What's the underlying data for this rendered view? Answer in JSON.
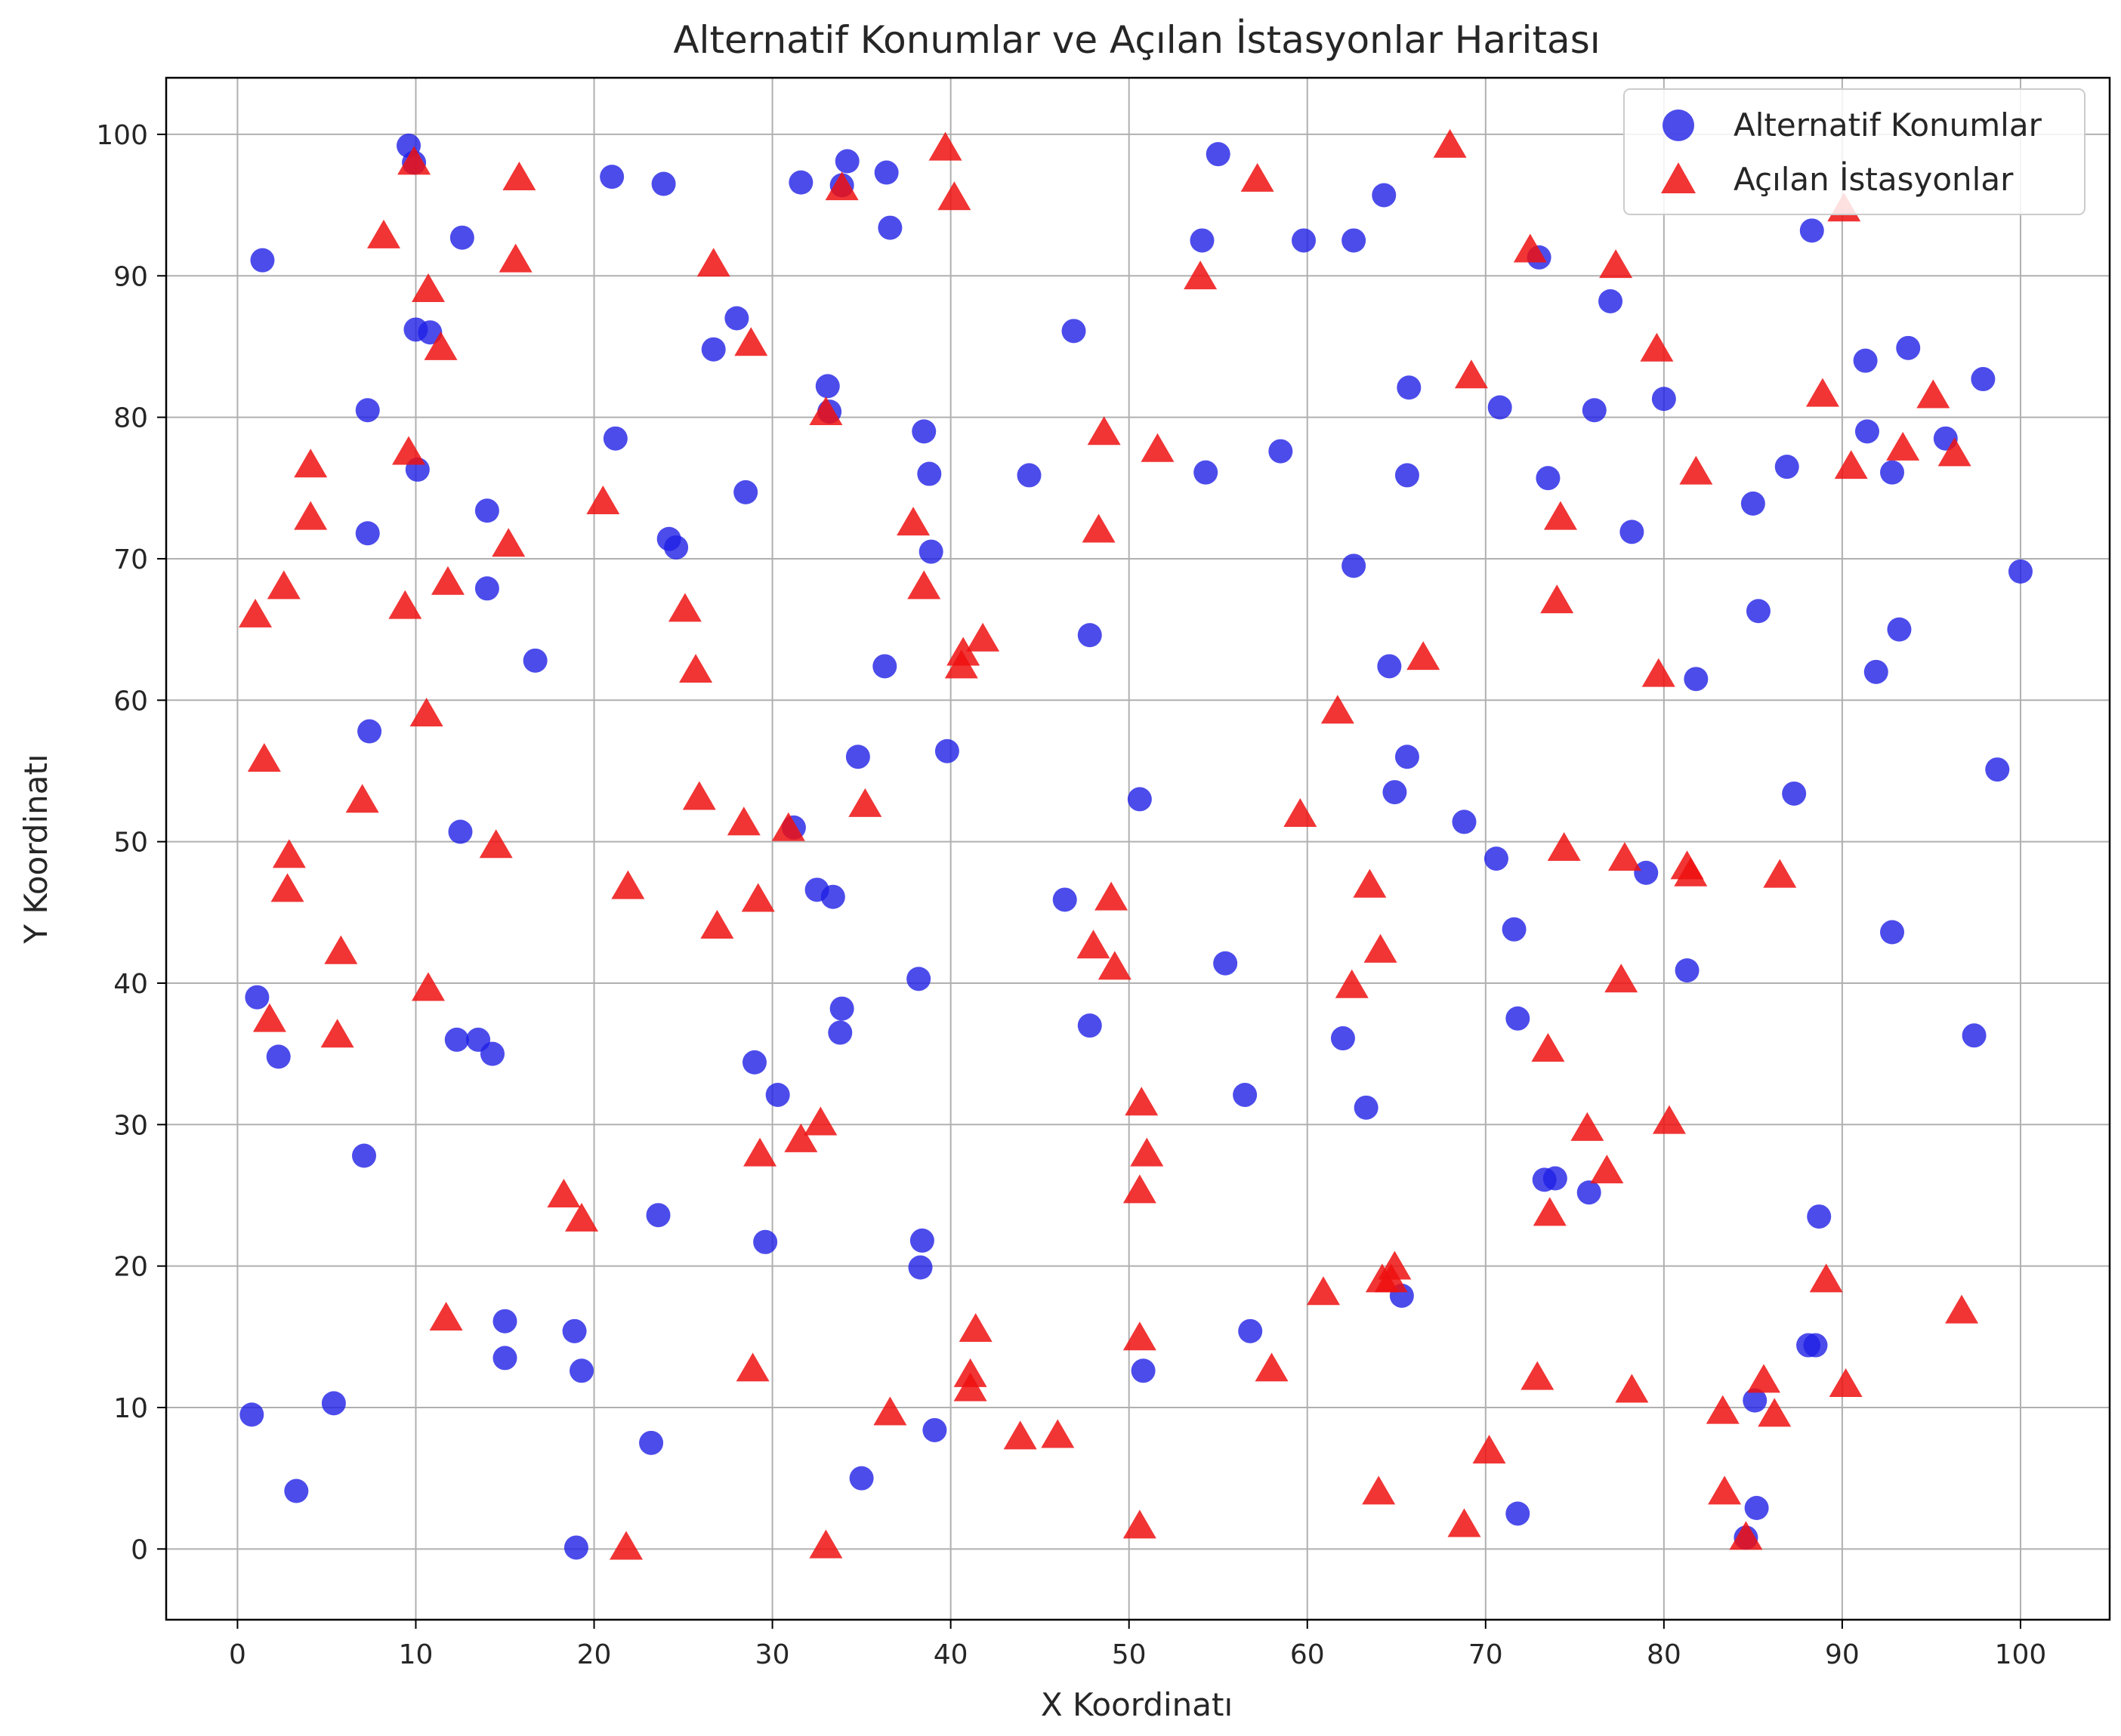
{
  "chart_data": {
    "type": "scatter",
    "title": "Alternatif Konumlar ve Açılan İstasyonlar Haritası",
    "xlabel": "X Koordinatı",
    "ylabel": "Y Koordinatı",
    "xlim": [
      -4,
      105
    ],
    "ylim": [
      -5,
      104
    ],
    "xticks": [
      0,
      10,
      20,
      30,
      40,
      50,
      60,
      70,
      80,
      90,
      100
    ],
    "yticks": [
      0,
      10,
      20,
      30,
      40,
      50,
      60,
      70,
      80,
      90,
      100
    ],
    "grid": true,
    "legend_position": "top-right",
    "series": [
      {
        "name": "Alternatif Konumlar",
        "marker": "circle",
        "color": "#1f1fe6",
        "points": [
          [
            1.4,
            91.1
          ],
          [
            9.6,
            99.2
          ],
          [
            9.9,
            98.0
          ],
          [
            10.0,
            86.2
          ],
          [
            10.8,
            86.0
          ],
          [
            10.1,
            76.3
          ],
          [
            7.3,
            80.5
          ],
          [
            7.3,
            71.8
          ],
          [
            12.6,
            92.7
          ],
          [
            14.0,
            73.4
          ],
          [
            14.0,
            67.9
          ],
          [
            16.7,
            62.8
          ],
          [
            7.4,
            57.8
          ],
          [
            12.5,
            50.7
          ],
          [
            1.1,
            39.0
          ],
          [
            2.3,
            34.8
          ],
          [
            7.1,
            27.8
          ],
          [
            12.3,
            36.0
          ],
          [
            13.5,
            36.0
          ],
          [
            14.3,
            35.0
          ],
          [
            15.0,
            13.5
          ],
          [
            15.0,
            16.1
          ],
          [
            5.4,
            10.3
          ],
          [
            3.3,
            4.1
          ],
          [
            0.8,
            9.5
          ],
          [
            18.9,
            15.4
          ],
          [
            19.3,
            12.6
          ],
          [
            23.2,
            7.5
          ],
          [
            19.0,
            0.1
          ],
          [
            23.6,
            23.6
          ],
          [
            21.0,
            97.0
          ],
          [
            23.9,
            96.5
          ],
          [
            21.2,
            78.5
          ],
          [
            24.2,
            71.4
          ],
          [
            24.6,
            70.8
          ],
          [
            26.7,
            84.8
          ],
          [
            28.0,
            87.0
          ],
          [
            28.5,
            74.7
          ],
          [
            29.0,
            34.4
          ],
          [
            29.6,
            21.7
          ],
          [
            30.3,
            32.1
          ],
          [
            31.2,
            51.0
          ],
          [
            31.6,
            96.6
          ],
          [
            32.5,
            46.6
          ],
          [
            33.4,
            46.1
          ],
          [
            33.1,
            82.2
          ],
          [
            33.2,
            80.4
          ],
          [
            34.2,
            98.1
          ],
          [
            33.9,
            96.4
          ],
          [
            33.9,
            38.2
          ],
          [
            33.8,
            36.5
          ],
          [
            34.8,
            56.0
          ],
          [
            35.0,
            5.0
          ],
          [
            36.4,
            97.3
          ],
          [
            36.6,
            93.4
          ],
          [
            36.3,
            62.4
          ],
          [
            38.5,
            79.0
          ],
          [
            38.9,
            70.5
          ],
          [
            38.8,
            76.0
          ],
          [
            38.2,
            40.3
          ],
          [
            38.4,
            21.8
          ],
          [
            38.3,
            19.9
          ],
          [
            39.1,
            8.4
          ],
          [
            39.8,
            56.4
          ],
          [
            46.9,
            86.1
          ],
          [
            44.4,
            75.9
          ],
          [
            47.8,
            64.6
          ],
          [
            47.8,
            37.0
          ],
          [
            46.4,
            45.9
          ],
          [
            50.6,
            53.0
          ],
          [
            50.8,
            12.6
          ],
          [
            54.1,
            92.5
          ],
          [
            55.0,
            98.6
          ],
          [
            54.3,
            76.1
          ],
          [
            55.4,
            41.4
          ],
          [
            56.5,
            32.1
          ],
          [
            56.8,
            15.4
          ],
          [
            58.5,
            77.6
          ],
          [
            59.8,
            92.5
          ],
          [
            62.6,
            92.5
          ],
          [
            62.6,
            69.5
          ],
          [
            62.0,
            36.1
          ],
          [
            63.3,
            31.2
          ],
          [
            64.3,
            95.7
          ],
          [
            64.6,
            62.4
          ],
          [
            64.9,
            53.5
          ],
          [
            65.7,
            82.1
          ],
          [
            65.6,
            75.9
          ],
          [
            65.6,
            56.0
          ],
          [
            65.3,
            17.9
          ],
          [
            68.8,
            51.4
          ],
          [
            70.6,
            48.8
          ],
          [
            70.8,
            80.7
          ],
          [
            71.6,
            43.8
          ],
          [
            71.8,
            37.5
          ],
          [
            71.8,
            2.5
          ],
          [
            73.0,
            91.3
          ],
          [
            73.3,
            26.1
          ],
          [
            73.5,
            75.7
          ],
          [
            73.9,
            26.2
          ],
          [
            75.8,
            25.2
          ],
          [
            76.1,
            80.5
          ],
          [
            77.0,
            88.2
          ],
          [
            78.2,
            71.9
          ],
          [
            79.0,
            47.8
          ],
          [
            80.0,
            81.3
          ],
          [
            81.3,
            40.9
          ],
          [
            81.8,
            61.5
          ],
          [
            85.3,
            66.3
          ],
          [
            85.0,
            73.9
          ],
          [
            86.9,
            76.5
          ],
          [
            87.3,
            53.4
          ],
          [
            88.3,
            93.2
          ],
          [
            88.1,
            14.4
          ],
          [
            88.5,
            14.4
          ],
          [
            88.7,
            23.5
          ],
          [
            91.3,
            84.0
          ],
          [
            91.4,
            79.0
          ],
          [
            91.9,
            62.0
          ],
          [
            92.8,
            76.1
          ],
          [
            93.2,
            65.0
          ],
          [
            93.7,
            84.9
          ],
          [
            92.8,
            43.6
          ],
          [
            95.8,
            78.5
          ],
          [
            97.9,
            82.7
          ],
          [
            98.7,
            55.1
          ],
          [
            100.0,
            69.1
          ],
          [
            97.4,
            36.3
          ],
          [
            85.1,
            10.5
          ],
          [
            85.2,
            2.9
          ],
          [
            84.6,
            0.8
          ]
        ]
      },
      {
        "name": "Açılan İstasyonlar",
        "marker": "triangle",
        "color": "#ee1111",
        "points": [
          [
            1.0,
            66.0
          ],
          [
            2.6,
            68.0
          ],
          [
            4.1,
            72.9
          ],
          [
            4.1,
            76.6
          ],
          [
            1.5,
            55.8
          ],
          [
            2.9,
            49.0
          ],
          [
            2.8,
            46.6
          ],
          [
            5.8,
            42.2
          ],
          [
            5.6,
            36.3
          ],
          [
            1.8,
            37.4
          ],
          [
            7.0,
            52.9
          ],
          [
            8.2,
            92.8
          ],
          [
            9.4,
            66.6
          ],
          [
            9.6,
            77.5
          ],
          [
            9.9,
            98.0
          ],
          [
            10.7,
            89.0
          ],
          [
            11.4,
            84.9
          ],
          [
            11.8,
            68.3
          ],
          [
            10.6,
            59.0
          ],
          [
            14.5,
            49.7
          ],
          [
            10.7,
            39.6
          ],
          [
            11.7,
            16.3
          ],
          [
            15.2,
            71.0
          ],
          [
            15.6,
            91.1
          ],
          [
            15.8,
            96.9
          ],
          [
            18.3,
            25.0
          ],
          [
            19.3,
            23.3
          ],
          [
            20.5,
            74.0
          ],
          [
            21.9,
            46.8
          ],
          [
            21.8,
            0.1
          ],
          [
            25.1,
            66.4
          ],
          [
            25.7,
            62.1
          ],
          [
            25.9,
            53.1
          ],
          [
            26.7,
            90.8
          ],
          [
            26.9,
            44.0
          ],
          [
            28.4,
            51.3
          ],
          [
            28.8,
            85.2
          ],
          [
            28.9,
            12.7
          ],
          [
            29.2,
            45.9
          ],
          [
            29.3,
            27.9
          ],
          [
            30.9,
            50.9
          ],
          [
            31.6,
            28.9
          ],
          [
            32.7,
            30.1
          ],
          [
            33.0,
            80.3
          ],
          [
            33.9,
            96.2
          ],
          [
            35.2,
            52.6
          ],
          [
            33.0,
            0.2
          ],
          [
            36.6,
            9.6
          ],
          [
            37.9,
            72.5
          ],
          [
            38.5,
            68.0
          ],
          [
            39.7,
            99.0
          ],
          [
            40.2,
            95.5
          ],
          [
            40.6,
            62.4
          ],
          [
            40.7,
            63.3
          ],
          [
            41.8,
            64.3
          ],
          [
            41.1,
            11.3
          ],
          [
            41.1,
            12.3
          ],
          [
            41.4,
            15.5
          ],
          [
            43.9,
            7.9
          ],
          [
            46.0,
            8.0
          ],
          [
            48.0,
            42.6
          ],
          [
            48.3,
            72.0
          ],
          [
            48.6,
            78.9
          ],
          [
            49.0,
            46.0
          ],
          [
            49.2,
            41.1
          ],
          [
            50.6,
            1.6
          ],
          [
            50.6,
            14.9
          ],
          [
            50.6,
            25.3
          ],
          [
            50.7,
            31.5
          ],
          [
            51.0,
            27.9
          ],
          [
            51.6,
            77.7
          ],
          [
            54.0,
            89.9
          ],
          [
            57.2,
            96.8
          ],
          [
            58.0,
            12.7
          ],
          [
            59.6,
            51.9
          ],
          [
            60.9,
            18.1
          ],
          [
            61.7,
            59.2
          ],
          [
            62.5,
            39.8
          ],
          [
            63.5,
            46.9
          ],
          [
            64.0,
            4.0
          ],
          [
            64.1,
            42.3
          ],
          [
            64.2,
            19.0
          ],
          [
            64.9,
            19.9
          ],
          [
            64.7,
            19.0
          ],
          [
            66.5,
            63.0
          ],
          [
            68.0,
            99.2
          ],
          [
            68.8,
            1.7
          ],
          [
            69.2,
            82.9
          ],
          [
            70.2,
            6.9
          ],
          [
            72.5,
            91.8
          ],
          [
            72.9,
            12.1
          ],
          [
            73.5,
            35.3
          ],
          [
            73.6,
            23.7
          ],
          [
            74.0,
            67.0
          ],
          [
            74.2,
            72.9
          ],
          [
            74.4,
            49.5
          ],
          [
            75.7,
            29.7
          ],
          [
            76.8,
            26.7
          ],
          [
            77.3,
            90.7
          ],
          [
            77.6,
            40.2
          ],
          [
            77.8,
            48.8
          ],
          [
            78.2,
            11.2
          ],
          [
            79.6,
            84.8
          ],
          [
            79.7,
            61.8
          ],
          [
            80.3,
            30.2
          ],
          [
            81.3,
            48.2
          ],
          [
            81.5,
            47.7
          ],
          [
            81.8,
            76.1
          ],
          [
            83.3,
            9.7
          ],
          [
            83.4,
            4.0
          ],
          [
            84.6,
            0.8
          ],
          [
            85.6,
            11.9
          ],
          [
            86.2,
            9.5
          ],
          [
            86.5,
            47.6
          ],
          [
            88.9,
            81.6
          ],
          [
            89.1,
            19.0
          ],
          [
            90.1,
            94.7
          ],
          [
            90.2,
            11.6
          ],
          [
            90.5,
            76.5
          ],
          [
            93.4,
            77.8
          ],
          [
            95.1,
            81.5
          ],
          [
            96.3,
            77.4
          ],
          [
            96.7,
            16.8
          ]
        ]
      }
    ]
  }
}
